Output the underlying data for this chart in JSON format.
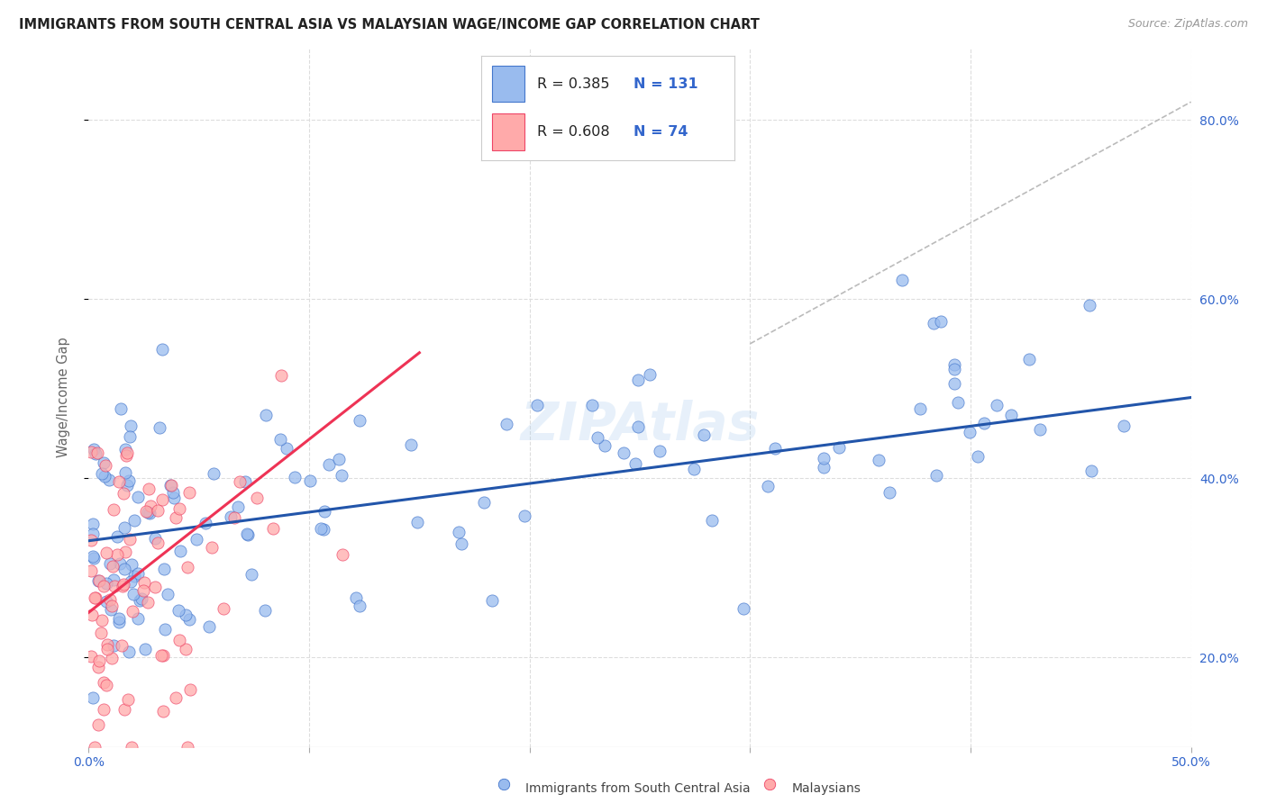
{
  "title": "IMMIGRANTS FROM SOUTH CENTRAL ASIA VS MALAYSIAN WAGE/INCOME GAP CORRELATION CHART",
  "source": "Source: ZipAtlas.com",
  "ylabel": "Wage/Income Gap",
  "legend_label1": "Immigrants from South Central Asia",
  "legend_label2": "Malaysians",
  "R1": 0.385,
  "N1": 131,
  "R2": 0.608,
  "N2": 74,
  "color_blue_fill": "#99bbee",
  "color_pink_fill": "#ffaaaa",
  "color_blue_edge": "#4477cc",
  "color_pink_edge": "#ee4466",
  "color_blue_line": "#2255aa",
  "color_pink_line": "#ee3355",
  "color_diag": "#bbbbbb",
  "color_grid": "#dddddd",
  "color_right_tick": "#3366cc",
  "watermark": "ZIPAtlas",
  "xlim": [
    0,
    50
  ],
  "ylim": [
    10,
    88
  ],
  "yticks": [
    20,
    40,
    60,
    80
  ],
  "xticks": [
    0,
    10,
    20,
    30,
    40,
    50
  ],
  "blue_line_x": [
    0,
    50
  ],
  "blue_line_y": [
    33.0,
    49.0
  ],
  "pink_line_x": [
    0,
    15
  ],
  "pink_line_y": [
    25.0,
    54.0
  ],
  "diag_line_x": [
    30,
    50
  ],
  "diag_line_y": [
    55,
    82
  ]
}
